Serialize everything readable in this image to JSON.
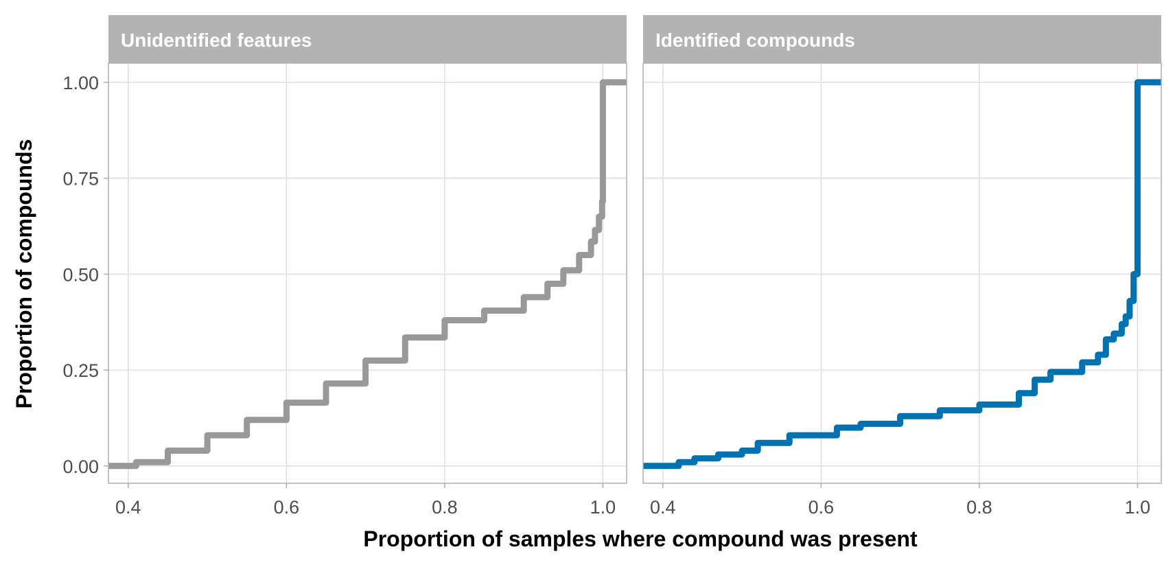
{
  "chart_data": {
    "type": "line",
    "xlabel": "Proportion of samples where compound was present",
    "ylabel": "Proportion of compounds",
    "xlim": [
      0.375,
      1.03
    ],
    "ylim": [
      -0.045,
      1.05
    ],
    "x_ticks": [
      "0.4",
      "0.6",
      "0.8",
      "1.0"
    ],
    "y_ticks": [
      "0.00",
      "0.25",
      "0.50",
      "0.75",
      "1.00"
    ],
    "grid": true,
    "legend": "none",
    "strip_color": "#b3b3b3",
    "panels": [
      {
        "title": "Unidentified features",
        "color": "#999999",
        "series": [
          {
            "step": "post",
            "x": [
              0.375,
              0.4,
              0.41,
              0.45,
              0.5,
              0.55,
              0.6,
              0.65,
              0.7,
              0.75,
              0.8,
              0.85,
              0.9,
              0.93,
              0.95,
              0.97,
              0.985,
              0.99,
              0.995,
              0.999,
              1.0,
              1.03
            ],
            "y": [
              0.0,
              0.0,
              0.01,
              0.04,
              0.08,
              0.12,
              0.165,
              0.215,
              0.275,
              0.335,
              0.38,
              0.405,
              0.44,
              0.475,
              0.51,
              0.55,
              0.585,
              0.615,
              0.65,
              0.69,
              1.0,
              1.0
            ]
          }
        ]
      },
      {
        "title": "Identified compounds",
        "color": "#0072b2",
        "series": [
          {
            "step": "post",
            "x": [
              0.375,
              0.42,
              0.44,
              0.47,
              0.5,
              0.52,
              0.56,
              0.62,
              0.65,
              0.7,
              0.75,
              0.8,
              0.85,
              0.87,
              0.89,
              0.93,
              0.95,
              0.96,
              0.97,
              0.98,
              0.985,
              0.99,
              0.995,
              1.0,
              1.03
            ],
            "y": [
              0.0,
              0.01,
              0.02,
              0.03,
              0.04,
              0.06,
              0.08,
              0.1,
              0.11,
              0.13,
              0.145,
              0.16,
              0.19,
              0.225,
              0.245,
              0.27,
              0.29,
              0.33,
              0.345,
              0.37,
              0.39,
              0.43,
              0.5,
              1.0,
              1.0
            ]
          }
        ]
      }
    ]
  }
}
